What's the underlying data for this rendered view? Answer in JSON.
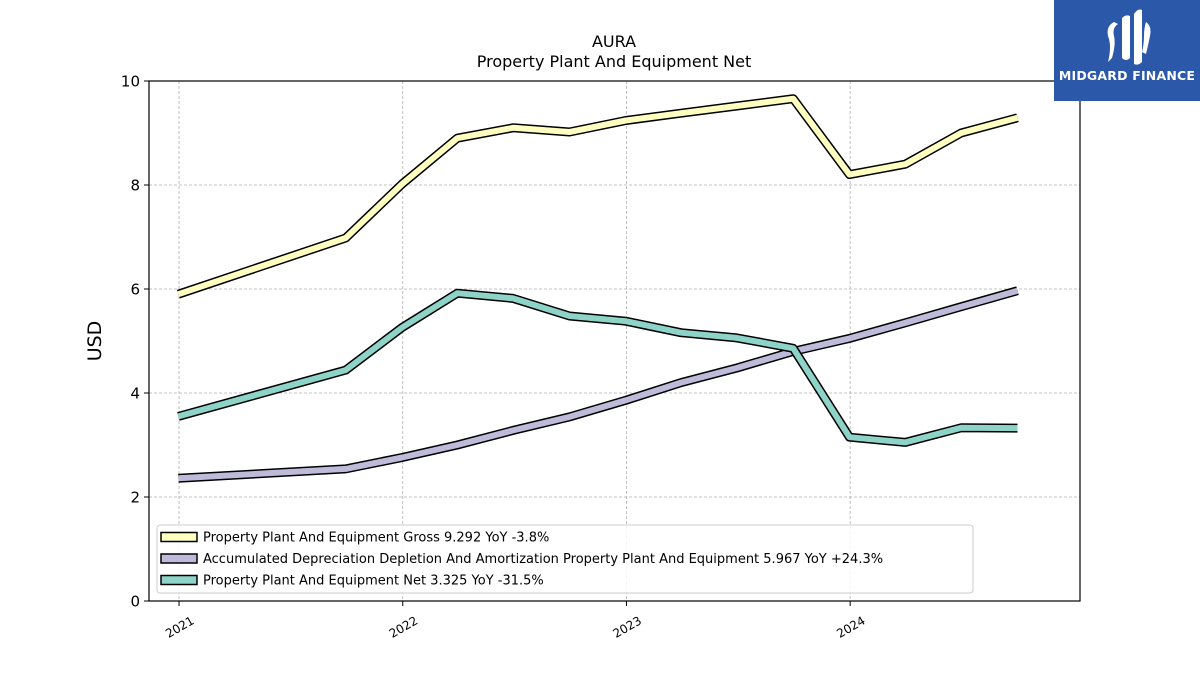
{
  "brand": {
    "name": "MIDGARD FINANCE",
    "bg_color": "#2b58a8"
  },
  "chart_data": {
    "type": "line",
    "title": "AURA",
    "subtitle": "Property Plant And Equipment Net",
    "xlabel": "",
    "ylabel": "USD",
    "ylim": [
      0,
      10
    ],
    "yticks": [
      0,
      2,
      4,
      6,
      8,
      10
    ],
    "xlim": [
      "2020-11-13",
      "2025-01-10"
    ],
    "xticks": [
      {
        "date": "2021-01-01",
        "label": "2021"
      },
      {
        "date": "2022-01-01",
        "label": "2022"
      },
      {
        "date": "2023-01-01",
        "label": "2023"
      },
      {
        "date": "2024-01-01",
        "label": "2024"
      }
    ],
    "grid": true,
    "legend_position": "lower-left",
    "series": [
      {
        "name": "Property Plant And Equipment Gross",
        "legend_label": "Property Plant And Equipment Gross  9.292 YoY -3.8%",
        "color": "#ffffbf",
        "points": [
          [
            "2020-12-31",
            5.9
          ],
          [
            "2021-09-30",
            6.98
          ],
          [
            "2021-12-31",
            8.02
          ],
          [
            "2022-03-31",
            8.9
          ],
          [
            "2022-06-30",
            9.1
          ],
          [
            "2022-09-30",
            9.02
          ],
          [
            "2022-12-31",
            9.24
          ],
          [
            "2023-03-31",
            9.38
          ],
          [
            "2023-06-30",
            9.52
          ],
          [
            "2023-09-30",
            9.66
          ],
          [
            "2023-12-31",
            8.2
          ],
          [
            "2024-03-31",
            8.4
          ],
          [
            "2024-06-30",
            9.0
          ],
          [
            "2024-09-30",
            9.292
          ]
        ]
      },
      {
        "name": "Accumulated Depreciation Depletion And Amortization Property Plant And Equipment",
        "legend_label": "Accumulated Depreciation Depletion And Amortization Property Plant And Equipment  5.967 YoY +24.3%",
        "color": "#bebada",
        "points": [
          [
            "2020-12-31",
            2.36
          ],
          [
            "2021-09-30",
            2.54
          ],
          [
            "2021-12-31",
            2.76
          ],
          [
            "2022-03-31",
            3.0
          ],
          [
            "2022-06-30",
            3.28
          ],
          [
            "2022-09-30",
            3.54
          ],
          [
            "2022-12-31",
            3.86
          ],
          [
            "2023-03-31",
            4.2
          ],
          [
            "2023-06-30",
            4.48
          ],
          [
            "2023-09-30",
            4.8
          ],
          [
            "2023-12-31",
            5.05
          ],
          [
            "2024-03-31",
            5.35
          ],
          [
            "2024-06-30",
            5.66
          ],
          [
            "2024-09-30",
            5.967
          ]
        ]
      },
      {
        "name": "Property Plant And Equipment Net",
        "legend_label": "Property Plant And Equipment Net  3.325 YoY -31.5%",
        "color": "#8dd3c7",
        "points": [
          [
            "2020-12-31",
            3.55
          ],
          [
            "2021-09-30",
            4.44
          ],
          [
            "2021-12-31",
            5.26
          ],
          [
            "2022-03-31",
            5.92
          ],
          [
            "2022-06-30",
            5.82
          ],
          [
            "2022-09-30",
            5.48
          ],
          [
            "2022-12-31",
            5.38
          ],
          [
            "2023-03-31",
            5.16
          ],
          [
            "2023-06-30",
            5.06
          ],
          [
            "2023-09-30",
            4.86
          ],
          [
            "2023-12-31",
            3.15
          ],
          [
            "2024-03-31",
            3.05
          ],
          [
            "2024-06-30",
            3.33
          ],
          [
            "2024-09-30",
            3.325
          ]
        ]
      }
    ]
  }
}
